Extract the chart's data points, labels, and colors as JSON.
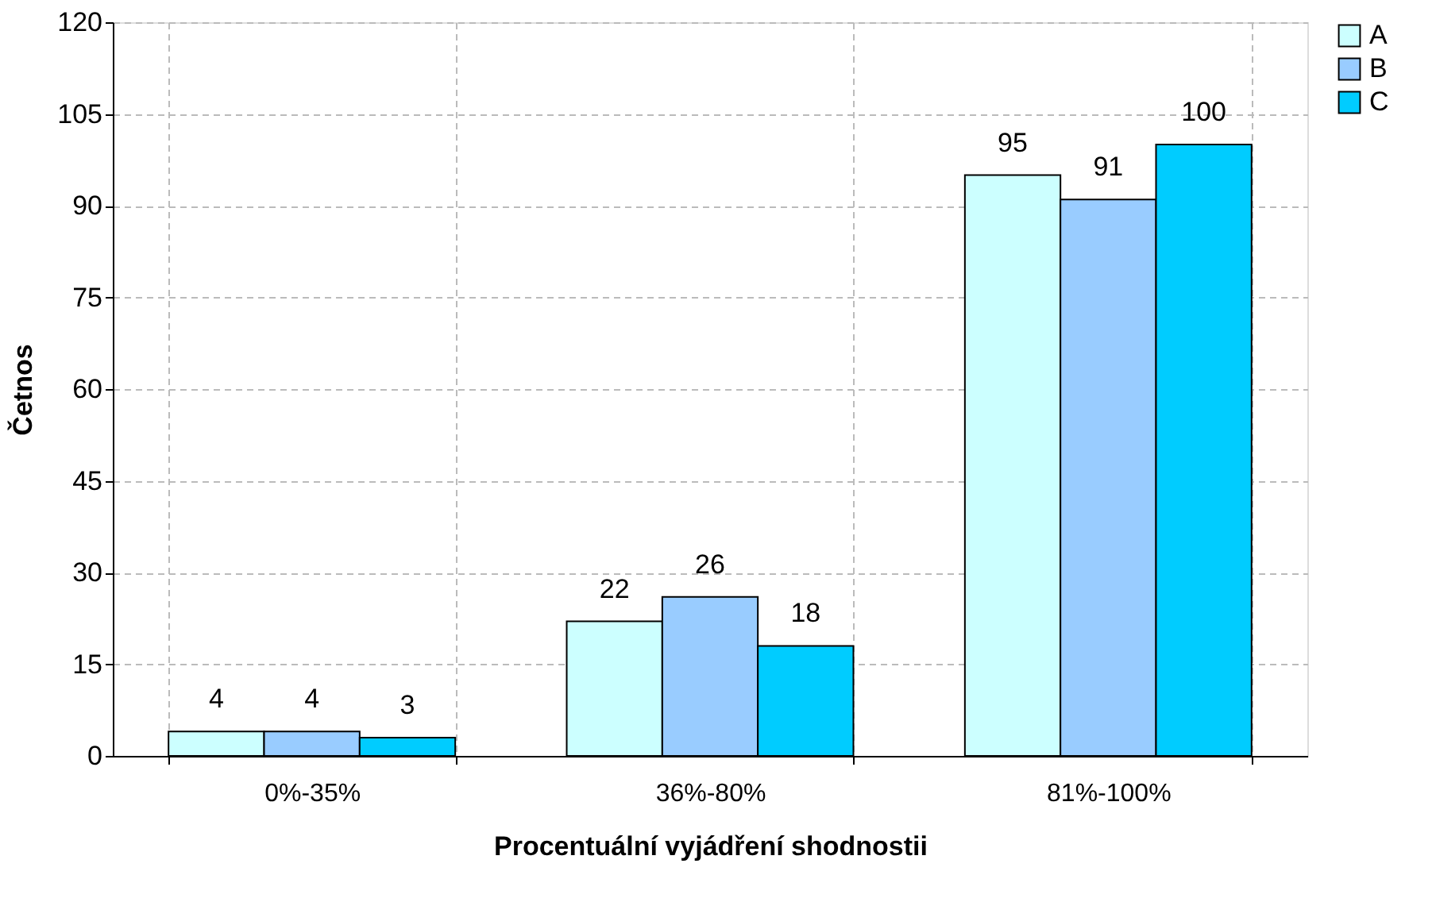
{
  "chart_data": {
    "type": "bar",
    "xlabel": "Procentuální vyjádření shodnostii",
    "ylabel": "Četnos",
    "categories": [
      "0%-35%",
      "36%-80%",
      "81%-100%"
    ],
    "series": [
      {
        "name": "A",
        "color": "#ccffff",
        "values": [
          4,
          22,
          95
        ]
      },
      {
        "name": "B",
        "color": "#99ccff",
        "values": [
          4,
          26,
          91
        ]
      },
      {
        "name": "C",
        "color": "#00ccff",
        "values": [
          3,
          18,
          100
        ]
      }
    ],
    "ylim": [
      0,
      120
    ],
    "yticks": [
      0,
      15,
      30,
      45,
      60,
      75,
      90,
      105,
      120
    ],
    "grid": true,
    "legend": "right",
    "data_labels": true
  }
}
